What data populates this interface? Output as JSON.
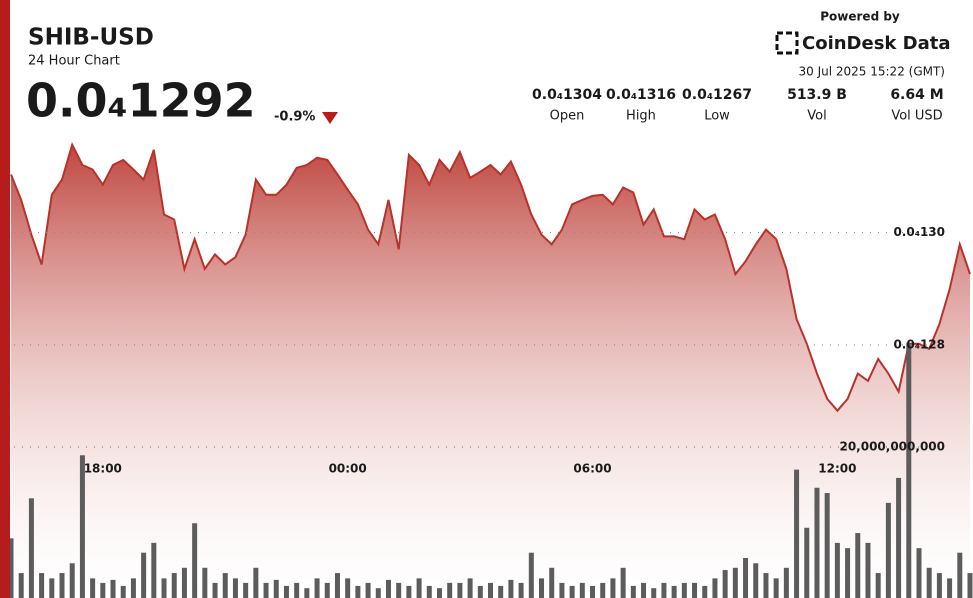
{
  "chart_data": {
    "type": "line",
    "title": "SHIB-USD",
    "subtitle": "24 Hour Chart",
    "price": "0.0₄1292",
    "change": "-0.9%",
    "stats": [
      {
        "value": "0.0₄1304",
        "label": "Open"
      },
      {
        "value": "0.0₄1316",
        "label": "High"
      },
      {
        "value": "0.0₄1267",
        "label": "Low"
      },
      {
        "value": "513.9 B",
        "label": "Vol"
      },
      {
        "value": "6.64 M",
        "label": "Vol USD"
      }
    ],
    "powered_by": "Powered by",
    "brand": "CoinDesk Data",
    "timestamp": "30 Jul 2025 15:22 (GMT)",
    "categories": [
      null,
      null,
      null,
      null,
      null,
      null,
      null,
      null,
      null,
      "18:00",
      null,
      null,
      null,
      null,
      null,
      null,
      null,
      null,
      null,
      null,
      null,
      null,
      null,
      null,
      null,
      null,
      null,
      null,
      null,
      null,
      null,
      null,
      null,
      "00:00",
      null,
      null,
      null,
      null,
      null,
      null,
      null,
      null,
      null,
      null,
      null,
      null,
      null,
      null,
      null,
      null,
      null,
      null,
      null,
      null,
      null,
      null,
      null,
      "06:00",
      null,
      null,
      null,
      null,
      null,
      null,
      null,
      null,
      null,
      null,
      null,
      null,
      null,
      null,
      null,
      null,
      null,
      null,
      null,
      null,
      null,
      null,
      null,
      "12:00",
      null,
      null,
      null,
      null,
      null,
      null,
      null,
      null,
      null,
      null,
      null,
      null,
      null
    ],
    "series": [
      {
        "type": "area",
        "color": "#b8322a",
        "values": [
          1.3103e-05,
          1.3058e-05,
          1.2996e-05,
          1.2943e-05,
          1.3067e-05,
          1.3094e-05,
          1.3156e-05,
          1.312e-05,
          1.3112e-05,
          1.3085e-05,
          1.312e-05,
          1.3129e-05,
          1.3112e-05,
          1.3094e-05,
          1.3147e-05,
          1.3032e-05,
          1.3023e-05,
          1.2935e-05,
          1.2988e-05,
          1.2935e-05,
          1.2961e-05,
          1.2943e-05,
          1.2956e-05,
          1.2996e-05,
          1.3094e-05,
          1.3067e-05,
          1.3067e-05,
          1.3085e-05,
          1.3115e-05,
          1.312e-05,
          1.3133e-05,
          1.3129e-05,
          1.3103e-05,
          1.3076e-05,
          1.305e-05,
          1.3005e-05,
          1.2979e-05,
          1.3058e-05,
          1.297e-05,
          1.3138e-05,
          1.312e-05,
          1.3085e-05,
          1.3129e-05,
          1.3108e-05,
          1.3143e-05,
          1.3097e-05,
          1.3108e-05,
          1.312e-05,
          1.3103e-05,
          1.3126e-05,
          1.3085e-05,
          1.3032e-05,
          1.2996e-05,
          1.2979e-05,
          1.3005e-05,
          1.305e-05,
          1.3058e-05,
          1.3065e-05,
          1.3067e-05,
          1.305e-05,
          1.308e-05,
          1.3071e-05,
          1.3014e-05,
          1.3041e-05,
          1.2993e-05,
          1.2993e-05,
          1.2988e-05,
          1.3041e-05,
          1.3023e-05,
          1.3032e-05,
          1.2988e-05,
          1.2926e-05,
          1.2949e-05,
          1.2979e-05,
          1.3005e-05,
          1.2988e-05,
          1.2935e-05,
          1.2846e-05,
          1.2802e-05,
          1.2749e-05,
          1.2704e-05,
          1.2683e-05,
          1.2704e-05,
          1.2749e-05,
          1.2736e-05,
          1.2775e-05,
          1.2749e-05,
          1.2717e-05,
          1.2802e-05,
          1.2802e-05,
          1.2793e-05,
          1.2837e-05,
          1.2899e-05,
          1.2979e-05,
          1.2926e-05
        ]
      },
      {
        "type": "bar",
        "axis": "y2",
        "color": "#5c5c5c",
        "values": [
          7900000000,
          3300000000,
          13200000000,
          3300000000,
          2600000000,
          3300000000,
          4600000000,
          18900000000,
          2600000000,
          2000000000,
          2400000000,
          1600000000,
          2600000000,
          6000000000,
          7300000000,
          2600000000,
          3300000000,
          4000000000,
          9900000000,
          4000000000,
          2000000000,
          3300000000,
          2600000000,
          2000000000,
          4000000000,
          2000000000,
          2400000000,
          1600000000,
          2000000000,
          1300000000,
          2600000000,
          2000000000,
          3300000000,
          2600000000,
          1600000000,
          2000000000,
          1300000000,
          2400000000,
          2000000000,
          1600000000,
          2600000000,
          1600000000,
          1300000000,
          2000000000,
          2000000000,
          2600000000,
          1600000000,
          2000000000,
          1600000000,
          2400000000,
          2000000000,
          6000000000,
          2600000000,
          4000000000,
          2000000000,
          1600000000,
          2000000000,
          1600000000,
          2000000000,
          2600000000,
          4000000000,
          1600000000,
          2000000000,
          1300000000,
          2000000000,
          1600000000,
          2000000000,
          2000000000,
          1600000000,
          2600000000,
          3700000000,
          4000000000,
          5300000000,
          4600000000,
          3300000000,
          2600000000,
          4000000000,
          17000000000,
          9300000000,
          14600000000,
          13900000000,
          7300000000,
          6600000000,
          8600000000,
          7300000000,
          3300000000,
          12600000000,
          15900000000,
          33800000000,
          6600000000,
          4000000000,
          3300000000,
          2600000000,
          6000000000,
          3300000000
        ]
      }
    ],
    "ylim": [
      1.235e-05,
      1.32e-05
    ],
    "yticks": [
      {
        "value": 1.3e-05,
        "label": "0.0₄130"
      },
      {
        "value": 1.28e-05,
        "label": "0.0₄128"
      }
    ],
    "y2lim": [
      0,
      63300000000
    ],
    "y2ticks": [
      {
        "value": 20000000000,
        "label": "20,000,000,000"
      }
    ],
    "grid": true
  }
}
